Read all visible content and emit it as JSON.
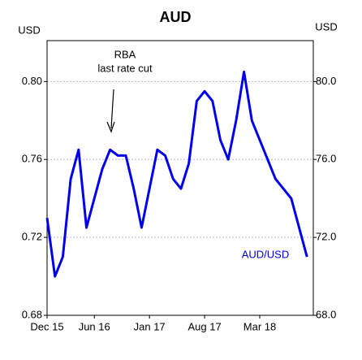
{
  "chart_data": {
    "type": "line",
    "title": "AUD",
    "y_label": "USD",
    "y2_label": "USD",
    "x": [
      "Dec 15",
      "Jan 16",
      "Feb 16",
      "Mar 16",
      "Apr 16",
      "May 16",
      "Jun 16",
      "Jul 16",
      "Aug 16",
      "Sep 16",
      "Oct 16",
      "Nov 16",
      "Dec 16",
      "Jan 17",
      "Feb 17",
      "Mar 17",
      "Apr 17",
      "May 17",
      "Jun 17",
      "Jul 17",
      "Aug 17",
      "Sep 17",
      "Oct 17",
      "Nov 17",
      "Dec 17",
      "Jan 18",
      "Feb 18",
      "Mar 18",
      "Apr 18",
      "May 18",
      "Jun 18",
      "Jul 18",
      "Aug 18",
      "Sep 18"
    ],
    "series": [
      {
        "name": "AUD/USD",
        "color": "#0000ee",
        "values": [
          0.73,
          0.7,
          0.71,
          0.75,
          0.765,
          0.725,
          0.74,
          0.755,
          0.765,
          0.762,
          0.762,
          0.745,
          0.725,
          0.745,
          0.765,
          0.762,
          0.75,
          0.745,
          0.758,
          0.79,
          0.795,
          0.79,
          0.77,
          0.76,
          0.78,
          0.805,
          0.78,
          0.77,
          0.76,
          0.75,
          0.745,
          0.74,
          0.725,
          0.71
        ]
      }
    ],
    "xticks": [
      "Dec 15",
      "Jun 16",
      "Jan 17",
      "Aug 17",
      "Mar 18"
    ],
    "ylim": [
      0.68,
      0.821
    ],
    "yticks": [
      {
        "value": 0.68,
        "label": "0.68"
      },
      {
        "value": 0.72,
        "label": "0.72"
      },
      {
        "value": 0.76,
        "label": "0.76"
      },
      {
        "value": 0.8,
        "label": "0.80"
      }
    ],
    "y2lim": [
      68.0,
      82.1
    ],
    "y2ticks": [
      {
        "value": 68,
        "label": "68.0"
      },
      {
        "value": 72,
        "label": "72.0"
      },
      {
        "value": 76,
        "label": "76.0"
      },
      {
        "value": 80,
        "label": "80.0"
      }
    ],
    "grid": true,
    "annotations": [
      {
        "lines": [
          "RBA",
          "last rate cut"
        ]
      }
    ]
  }
}
